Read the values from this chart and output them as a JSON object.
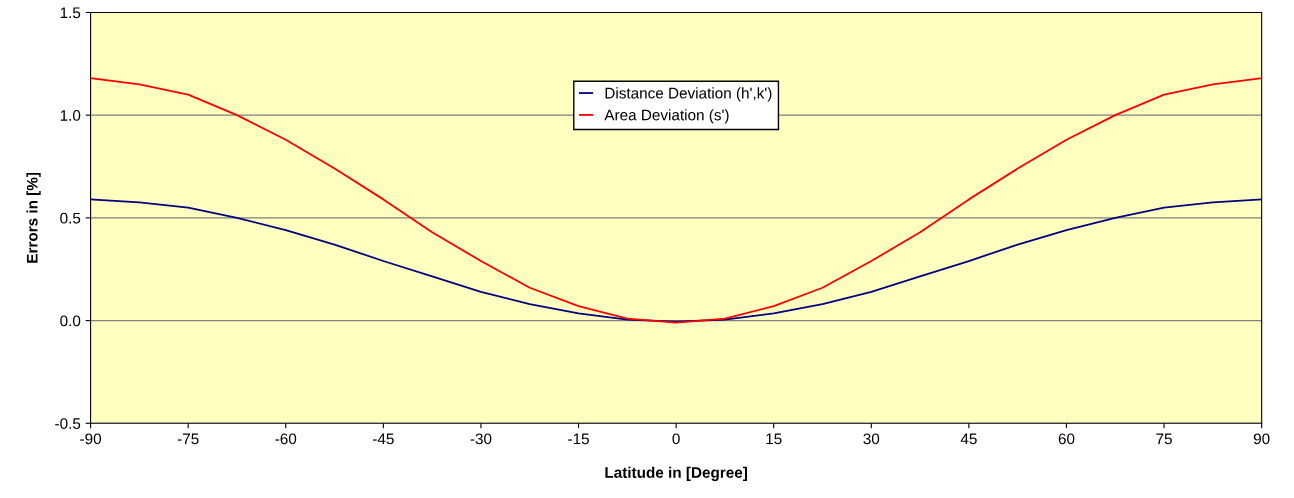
{
  "chart_data": {
    "type": "line",
    "xlabel": "Latitude in [Degree]",
    "ylabel": "Errors in [%]",
    "x": [
      -90,
      -82.5,
      -75,
      -67.5,
      -60,
      -52.5,
      -45,
      -37.5,
      -30,
      -22.5,
      -15,
      -7.5,
      0,
      7.5,
      15,
      22.5,
      30,
      37.5,
      45,
      52.5,
      60,
      67.5,
      75,
      82.5,
      90
    ],
    "series": [
      {
        "name": "Distance Deviation (h',k')",
        "color": "#000080",
        "values": [
          0.59,
          0.575,
          0.55,
          0.5,
          0.44,
          0.37,
          0.29,
          0.215,
          0.14,
          0.08,
          0.035,
          0.005,
          -0.005,
          0.005,
          0.035,
          0.08,
          0.14,
          0.215,
          0.29,
          0.37,
          0.44,
          0.5,
          0.55,
          0.575,
          0.59
        ]
      },
      {
        "name": "Area Deviation (s')",
        "color": "#ff0000",
        "values": [
          1.18,
          1.15,
          1.1,
          1.0,
          0.88,
          0.74,
          0.59,
          0.43,
          0.29,
          0.16,
          0.07,
          0.01,
          -0.01,
          0.01,
          0.07,
          0.16,
          0.29,
          0.43,
          0.59,
          0.74,
          0.88,
          1.0,
          1.1,
          1.15,
          1.18
        ]
      }
    ],
    "xlim": [
      -90,
      90
    ],
    "xticks": [
      -90,
      -75,
      -60,
      -45,
      -30,
      -15,
      0,
      15,
      30,
      45,
      60,
      75,
      90
    ],
    "ylim": [
      -0.5,
      1.5
    ],
    "yticks": [
      {
        "value": -0.5,
        "label": "-0.5"
      },
      {
        "value": 0,
        "label": "0.0"
      },
      {
        "value": 0.5,
        "label": "0.5"
      },
      {
        "value": 1,
        "label": "1.0"
      },
      {
        "value": 1.5,
        "label": "1.5"
      }
    ],
    "grid": "y",
    "legend": "top",
    "marker": "none",
    "line_style": "solid"
  }
}
